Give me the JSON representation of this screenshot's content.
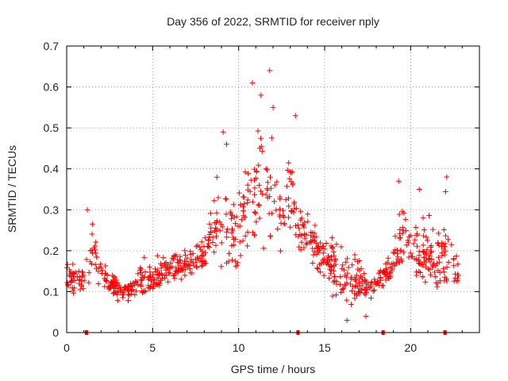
{
  "chart_data": {
    "type": "scatter",
    "title": "Day 356 of 2022, SRMTID for receiver nply",
    "xlabel": "GPS time / hours",
    "ylabel": "SRMTID / TECUs",
    "xlim": [
      0,
      24
    ],
    "ylim": [
      0,
      0.7
    ],
    "xticks": [
      0,
      5,
      10,
      15,
      20
    ],
    "yticks": [
      0,
      0.1,
      0.2,
      0.3,
      0.4,
      0.5,
      0.6,
      0.7
    ],
    "grid": true,
    "marker": "+",
    "color": "#ff0000",
    "envelope": {
      "x": [
        0.0,
        0.5,
        1.0,
        1.5,
        2.0,
        2.5,
        3.0,
        3.5,
        4.0,
        4.5,
        5.0,
        5.5,
        6.0,
        6.5,
        7.0,
        7.5,
        8.0,
        8.5,
        9.0,
        9.5,
        10.0,
        10.5,
        11.0,
        11.5,
        12.0,
        12.5,
        13.0,
        13.5,
        14.0,
        14.5,
        15.0,
        15.5,
        16.0,
        16.5,
        17.0,
        17.5,
        18.0,
        18.5,
        19.0,
        19.5,
        20.0,
        20.5,
        21.0,
        21.5,
        22.0,
        22.5,
        22.8
      ],
      "low": [
        0.1,
        0.09,
        0.08,
        0.1,
        0.1,
        0.09,
        0.07,
        0.07,
        0.08,
        0.08,
        0.09,
        0.1,
        0.11,
        0.11,
        0.12,
        0.13,
        0.14,
        0.15,
        0.1,
        0.09,
        0.1,
        0.14,
        0.18,
        0.2,
        0.18,
        0.17,
        0.18,
        0.2,
        0.18,
        0.12,
        0.1,
        0.08,
        0.06,
        0.05,
        0.07,
        0.07,
        0.09,
        0.1,
        0.12,
        0.12,
        0.12,
        0.1,
        0.09,
        0.08,
        0.09,
        0.1,
        0.09
      ],
      "high": [
        0.19,
        0.18,
        0.17,
        0.29,
        0.22,
        0.16,
        0.14,
        0.13,
        0.16,
        0.22,
        0.18,
        0.2,
        0.21,
        0.22,
        0.22,
        0.25,
        0.27,
        0.38,
        0.48,
        0.42,
        0.38,
        0.5,
        0.58,
        0.63,
        0.5,
        0.42,
        0.53,
        0.31,
        0.35,
        0.28,
        0.28,
        0.26,
        0.24,
        0.22,
        0.2,
        0.15,
        0.16,
        0.19,
        0.22,
        0.36,
        0.3,
        0.28,
        0.34,
        0.25,
        0.37,
        0.26,
        0.22
      ],
      "density_per_hour": 38
    },
    "peaks": [
      {
        "x": 1.2,
        "y": 0.3
      },
      {
        "x": 9.1,
        "y": 0.49
      },
      {
        "x": 9.3,
        "y": 0.46
      },
      {
        "x": 10.8,
        "y": 0.61
      },
      {
        "x": 11.3,
        "y": 0.58
      },
      {
        "x": 11.8,
        "y": 0.64
      },
      {
        "x": 12.0,
        "y": 0.55
      },
      {
        "x": 13.3,
        "y": 0.53
      },
      {
        "x": 19.3,
        "y": 0.37
      },
      {
        "x": 20.5,
        "y": 0.35
      },
      {
        "x": 22.1,
        "y": 0.38
      },
      {
        "x": 16.3,
        "y": 0.03
      },
      {
        "x": 17.4,
        "y": 0.04
      }
    ],
    "rug_ticks_x": [
      1.15,
      13.45,
      18.4,
      22.0
    ]
  }
}
